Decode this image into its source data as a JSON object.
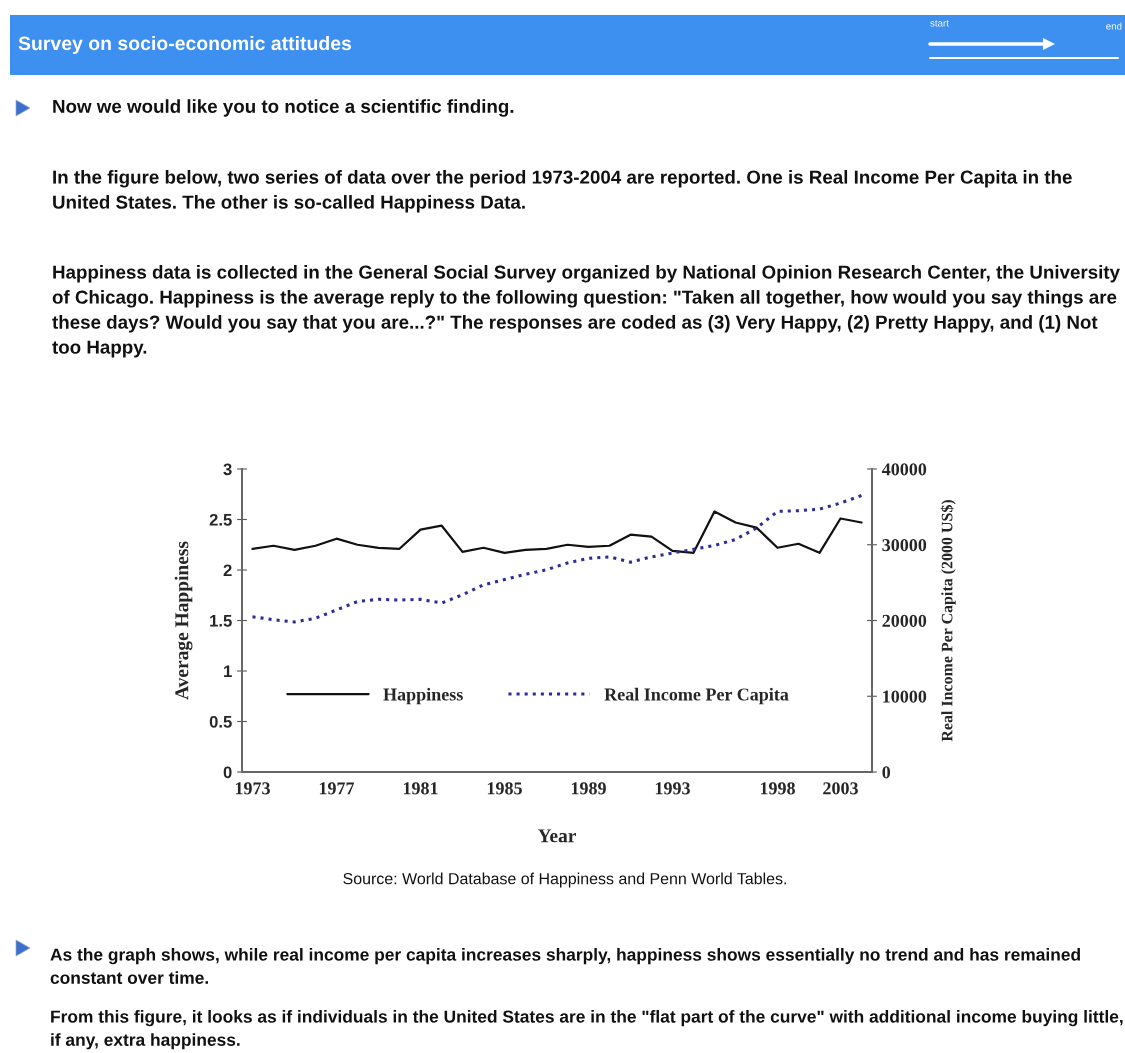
{
  "chart_data": {
    "type": "line",
    "title": "Survey on socio-economic attitudes",
    "xlabel": "Year",
    "ylabel": "Average Happiness",
    "y2label": "Real Income Per Capita (2000 US$)",
    "categories": [
      "1973",
      null,
      null,
      null,
      "1977",
      null,
      null,
      null,
      "1981",
      null,
      null,
      null,
      "1985",
      null,
      null,
      null,
      "1989",
      null,
      null,
      null,
      "1993",
      null,
      null,
      null,
      null,
      "1998",
      null,
      null,
      "2003",
      null
    ],
    "series": [
      {
        "name": "Happiness",
        "color": "#111111",
        "line_style": "solid",
        "values": [
          2.21,
          2.24,
          2.2,
          2.24,
          2.31,
          2.25,
          2.22,
          2.21,
          2.4,
          2.44,
          2.18,
          2.22,
          2.17,
          2.2,
          2.21,
          2.25,
          2.23,
          2.24,
          2.35,
          2.33,
          2.19,
          2.17,
          2.58,
          2.47,
          2.42,
          2.22,
          2.26,
          2.17,
          2.51,
          2.47
        ]
      },
      {
        "name": "Real Income Per Capita",
        "color": "#2b2b9a",
        "line_style": "dotted",
        "axis": "y2",
        "values": [
          20500,
          20100,
          19800,
          20300,
          21400,
          22500,
          22800,
          22700,
          22800,
          22300,
          23400,
          24700,
          25400,
          26100,
          26700,
          27600,
          28200,
          28400,
          27700,
          28400,
          28900,
          29400,
          29900,
          30700,
          32200,
          34400,
          34500,
          34700,
          35500,
          36500
        ]
      }
    ],
    "ylim": [
      0,
      3
    ],
    "yticks": [
      0,
      0.5,
      1,
      1.5,
      2,
      2.5,
      3
    ],
    "y2lim": [
      0,
      40000
    ],
    "y2ticks": [
      0,
      10000,
      20000,
      30000,
      40000
    ],
    "legend": "bottom",
    "grid": false,
    "annotations": [
      "Now we would like you to notice a scientific finding.",
      "In the figure below, two series of data over the period 1973-2004 are reported. One is Real Income Per Capita in the United States. The other is so-called Happiness Data.",
      "Happiness data is collected in the General Social Survey organized by National Opinion Research Center, the University of Chicago. Happiness is the average reply to the following question: \"Taken all together, how would you say things are these days? Would you say that you are...?\" The responses are coded as (3) Very Happy, (2) Pretty Happy, and (1) Not too Happy.",
      "Source: World Database of Happiness and Penn World Tables.",
      "As the graph shows, while real income per capita increases sharply, happiness shows essentially no trend and has remained constant over time.",
      "From this figure, it looks as if individuals in the United States are in the \"flat part of the curve\" with additional income buying little, if any, extra happiness.",
      "start",
      "end"
    ]
  }
}
